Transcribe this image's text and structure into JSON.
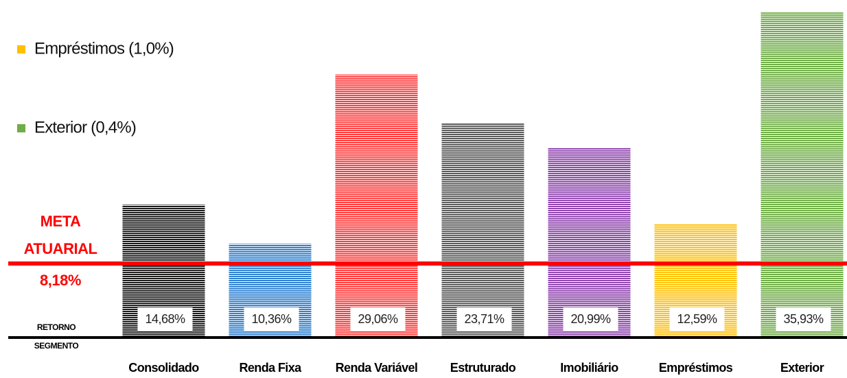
{
  "chart_data": {
    "type": "bar",
    "categories": [
      "Consolidado",
      "Renda Fixa",
      "Renda Variável",
      "Estruturado",
      "Imobiliário",
      "Empréstimos",
      "Exterior"
    ],
    "values": [
      14.68,
      10.36,
      29.06,
      23.71,
      20.99,
      12.59,
      35.93
    ],
    "value_labels": [
      "14,68%",
      "10,36%",
      "29,06%",
      "23,71%",
      "20,99%",
      "12,59%",
      "35,93%"
    ],
    "colors": [
      "#1a1a1a",
      "#2f80d0",
      "#ff3b3b",
      "#5a5a5a",
      "#8e44ad",
      "#ffc20e",
      "#70ad47"
    ],
    "ylim": [
      0,
      37
    ],
    "reference_line": {
      "value": 8.18,
      "label": [
        "META",
        "ATUARIAL"
      ],
      "value_label": "8,18%",
      "color": "#ff0000"
    },
    "axis_label": [
      "RETORNO",
      "SEGMENTO"
    ],
    "annotations": [
      {
        "text": "Empréstimos (1,0%)",
        "color": "#ffc000"
      },
      {
        "text": "Exterior (0,4%)",
        "color": "#70ad47"
      }
    ]
  }
}
